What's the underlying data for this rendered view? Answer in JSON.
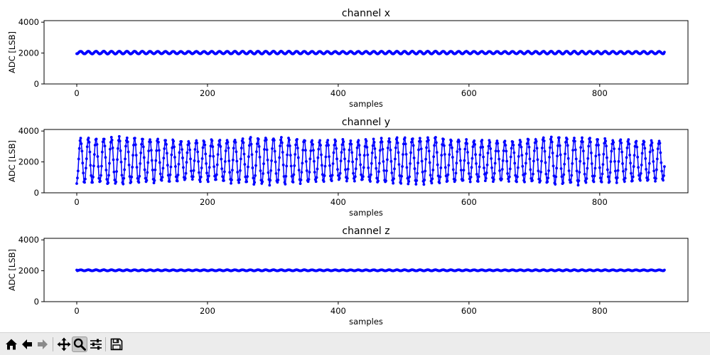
{
  "figure": {
    "background": "#ffffff",
    "line_color": "#0000ff"
  },
  "toolbar": {
    "buttons": [
      {
        "name": "home-icon",
        "tooltip": "Home"
      },
      {
        "name": "back-icon",
        "tooltip": "Back"
      },
      {
        "name": "forward-icon",
        "tooltip": "Forward"
      },
      {
        "name": "pan-icon",
        "tooltip": "Pan"
      },
      {
        "name": "zoom-icon",
        "tooltip": "Zoom",
        "active": true
      },
      {
        "name": "configure-subplots-icon",
        "tooltip": "Configure subplots"
      },
      {
        "name": "save-icon",
        "tooltip": "Save"
      }
    ]
  },
  "chart_data": [
    {
      "type": "line",
      "title": "channel x",
      "xlabel": "samples",
      "ylabel": "ADC [LSB]",
      "xlim": [
        -50,
        935
      ],
      "ylim": [
        0,
        4100
      ],
      "xticks": [
        0,
        200,
        400,
        600,
        800
      ],
      "yticks": [
        0,
        2000,
        4000
      ],
      "marker": "o",
      "color": "#0000ff",
      "series": [
        {
          "n_samples": 900,
          "center": 2030,
          "amplitude": 90,
          "period_samples": 11.8,
          "y_start": 1960,
          "y_end": 2060
        }
      ]
    },
    {
      "type": "line",
      "title": "channel y",
      "xlabel": "samples",
      "ylabel": "ADC [LSB]",
      "xlim": [
        -50,
        935
      ],
      "ylim": [
        0,
        4100
      ],
      "xticks": [
        0,
        200,
        400,
        600,
        800
      ],
      "yticks": [
        0,
        2000,
        4000
      ],
      "marker": "o",
      "color": "#0000ff",
      "series": [
        {
          "n_samples": 900,
          "center": 2080,
          "amplitude": 1500,
          "period_samples": 11.8,
          "y_start": 600,
          "y_end": 1700,
          "y_min": 500,
          "y_max": 3650
        }
      ]
    },
    {
      "type": "line",
      "title": "channel z",
      "xlabel": "samples",
      "ylabel": "ADC [LSB]",
      "xlim": [
        -50,
        935
      ],
      "ylim": [
        0,
        4100
      ],
      "xticks": [
        0,
        200,
        400,
        600,
        800
      ],
      "yticks": [
        0,
        2000,
        4000
      ],
      "marker": "o",
      "color": "#0000ff",
      "series": [
        {
          "n_samples": 900,
          "center": 2030,
          "amplitude": 35,
          "period_samples": 11.8,
          "y_start": 2050,
          "y_end": 2050
        }
      ]
    }
  ]
}
